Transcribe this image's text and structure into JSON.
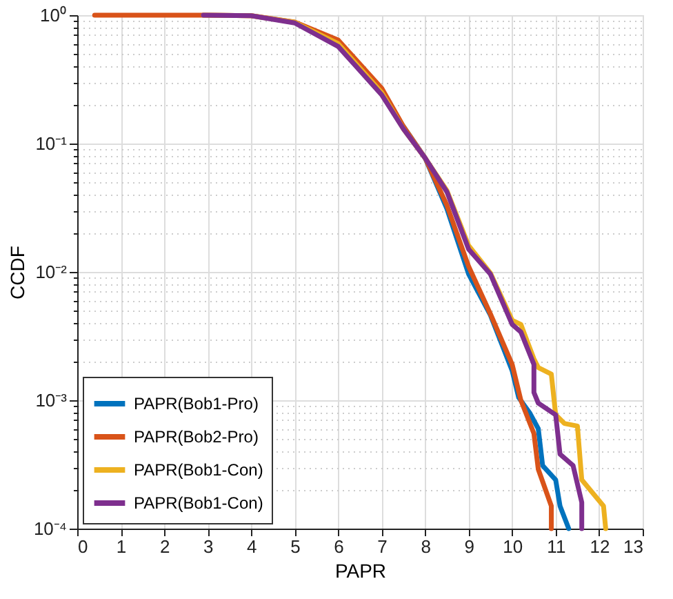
{
  "chart_data": {
    "type": "line",
    "xlabel": "PAPR",
    "ylabel": "CCDF",
    "log": "y",
    "grid": true,
    "legend": "bottom left",
    "line_style": "solid",
    "marker": "none",
    "xlim": [
      0,
      13
    ],
    "xticks": [
      0,
      1,
      2,
      3,
      4,
      5,
      6,
      7,
      8,
      9,
      10,
      11,
      12,
      13
    ],
    "ylim": [
      0.0001,
      1
    ],
    "yticks": [
      {
        "value": 0.0001,
        "label": "10⁻⁴"
      },
      {
        "value": 0.0002,
        "label": null
      },
      {
        "value": 0.0003,
        "label": null
      },
      {
        "value": 0.0004,
        "label": null
      },
      {
        "value": 0.0005,
        "label": null
      },
      {
        "value": 0.0006,
        "label": null
      },
      {
        "value": 0.0007,
        "label": null
      },
      {
        "value": 0.0008,
        "label": null
      },
      {
        "value": 0.0009,
        "label": null
      },
      {
        "value": 0.001,
        "label": "10⁻³"
      },
      {
        "value": 0.002,
        "label": null
      },
      {
        "value": 0.003,
        "label": null
      },
      {
        "value": 0.004,
        "label": null
      },
      {
        "value": 0.005,
        "label": null
      },
      {
        "value": 0.006,
        "label": null
      },
      {
        "value": 0.007,
        "label": null
      },
      {
        "value": 0.008,
        "label": null
      },
      {
        "value": 0.009,
        "label": null
      },
      {
        "value": 0.01,
        "label": "10⁻²"
      },
      {
        "value": 0.02,
        "label": null
      },
      {
        "value": 0.03,
        "label": null
      },
      {
        "value": 0.04,
        "label": null
      },
      {
        "value": 0.05,
        "label": null
      },
      {
        "value": 0.06,
        "label": null
      },
      {
        "value": 0.07,
        "label": null
      },
      {
        "value": 0.08,
        "label": null
      },
      {
        "value": 0.09,
        "label": null
      },
      {
        "value": 0.1,
        "label": "10⁻¹"
      },
      {
        "value": 0.2,
        "label": null
      },
      {
        "value": 0.3,
        "label": null
      },
      {
        "value": 0.4,
        "label": null
      },
      {
        "value": 0.5,
        "label": null
      },
      {
        "value": 0.6,
        "label": null
      },
      {
        "value": 0.7,
        "label": null
      },
      {
        "value": 0.8,
        "label": null
      },
      {
        "value": 0.9,
        "label": null
      },
      {
        "value": 1,
        "label": "10⁰"
      }
    ],
    "series": [
      {
        "name": "PAPR(Bob1-Pro)",
        "color": "#0072bd",
        "x": [
          7.5,
          8,
          8.5,
          9,
          9.5,
          10,
          10.15,
          10.4,
          10.6,
          10.7,
          11,
          11.1,
          11.3
        ],
        "values": [
          0.136,
          0.077,
          0.031,
          0.0096,
          0.0046,
          0.0017,
          0.00105,
          0.0008,
          0.0006,
          0.00031,
          0.00024,
          0.00015,
          0.0001
        ]
      },
      {
        "name": "PAPR(Bob2-Pro)",
        "color": "#d95319",
        "x": [
          0.4,
          3,
          4,
          5,
          6,
          7,
          7.5,
          8,
          8.5,
          9,
          9.5,
          10,
          10.2,
          10.5,
          10.6,
          10.9,
          10.9
        ],
        "values": [
          1,
          1,
          0.99,
          0.885,
          0.64,
          0.27,
          0.136,
          0.077,
          0.033,
          0.011,
          0.0047,
          0.0019,
          0.001,
          0.00055,
          0.00029,
          0.00015,
          0.0001
        ]
      },
      {
        "name": "PAPR(Bob1-Con)",
        "color": "#edb120",
        "x": [
          2.9,
          4,
          5,
          6,
          7,
          7.5,
          8,
          8.5,
          9,
          9.5,
          10,
          10.2,
          10.5,
          10.6,
          10.9,
          11,
          11.2,
          11.5,
          11.6,
          12.1,
          12.15
        ],
        "values": [
          1,
          0.99,
          0.88,
          0.6,
          0.25,
          0.13,
          0.077,
          0.043,
          0.016,
          0.0098,
          0.0042,
          0.0039,
          0.0021,
          0.0018,
          0.0016,
          0.00077,
          0.00066,
          0.00063,
          0.00024,
          0.00015,
          0.0001
        ]
      },
      {
        "name": "PAPR(Bob1-Con)",
        "color": "#7e2f8e",
        "x": [
          2.9,
          4,
          5,
          6,
          7,
          7.5,
          8,
          8.5,
          9,
          9.5,
          10,
          10.2,
          10.5,
          10.5,
          10.6,
          11,
          11.1,
          11.4,
          11.6,
          11.6
        ],
        "values": [
          1,
          0.99,
          0.87,
          0.57,
          0.24,
          0.13,
          0.077,
          0.042,
          0.015,
          0.0096,
          0.0039,
          0.0034,
          0.0019,
          0.00115,
          0.00095,
          0.00077,
          0.00038,
          0.00031,
          0.00016,
          0.0001
        ]
      }
    ]
  }
}
